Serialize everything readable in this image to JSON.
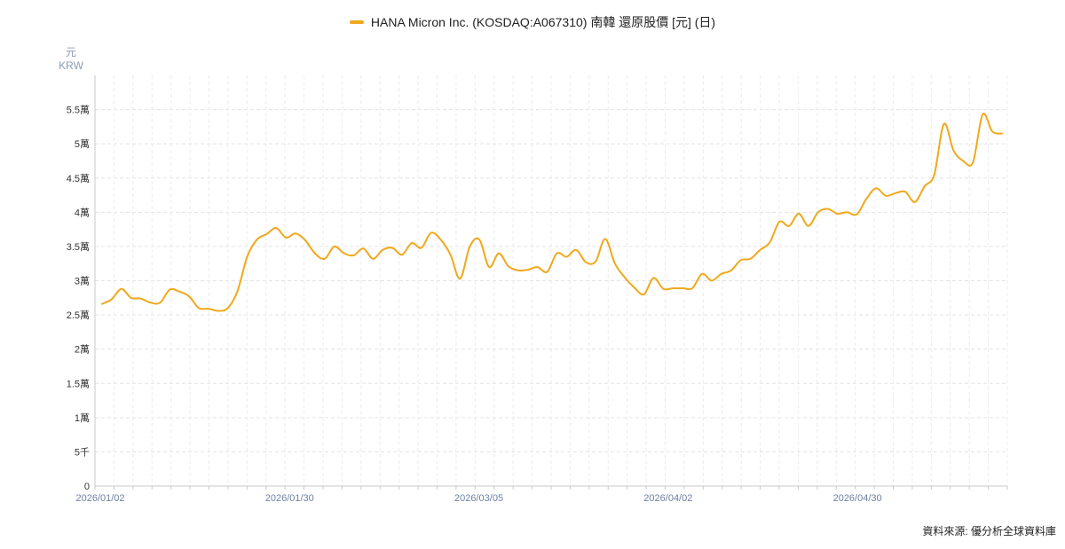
{
  "legend": {
    "label": "HANA Micron Inc. (KOSDAQ:A067310) 南韓 還原股價 [元] (日)",
    "color": "#f0a81c"
  },
  "unit": {
    "line1": "元",
    "line2": "KRW"
  },
  "source": "資料來源: 優分析全球資料庫",
  "chart_data": {
    "type": "line",
    "x_labels": [
      "2026/01/02",
      "2026/01/30",
      "2026/03/05",
      "2026/04/02",
      "2026/04/30"
    ],
    "y_ticks": [
      {
        "value": 0,
        "label": "0"
      },
      {
        "value": 5000,
        "label": "5千"
      },
      {
        "value": 10000,
        "label": "1萬"
      },
      {
        "value": 15000,
        "label": "1.5萬"
      },
      {
        "value": 20000,
        "label": "2萬"
      },
      {
        "value": 25000,
        "label": "2.5萬"
      },
      {
        "value": 30000,
        "label": "3萬"
      },
      {
        "value": 35000,
        "label": "3.5萬"
      },
      {
        "value": 40000,
        "label": "4萬"
      },
      {
        "value": 45000,
        "label": "4.5萬"
      },
      {
        "value": 50000,
        "label": "5萬"
      },
      {
        "value": 55000,
        "label": "5.5萬"
      }
    ],
    "ylim": [
      0,
      60000
    ],
    "grid": true,
    "series": [
      {
        "name": "HANA Micron Inc. (KOSDAQ:A067310) 南韓 還原股價 [元] (日)",
        "color": "#f0a81c",
        "values": [
          26600,
          27300,
          28800,
          27500,
          27400,
          26800,
          26800,
          28700,
          28400,
          27700,
          26000,
          25900,
          25600,
          26000,
          28500,
          33500,
          36000,
          36800,
          37700,
          36300,
          36900,
          35900,
          34000,
          33200,
          35000,
          34000,
          33700,
          34700,
          33200,
          34500,
          34800,
          33800,
          35500,
          34800,
          37000,
          36000,
          33800,
          30300,
          35000,
          36000,
          32000,
          34000,
          32100,
          31500,
          31600,
          32000,
          31300,
          34000,
          33500,
          34500,
          32700,
          32800,
          36100,
          32500,
          30500,
          29000,
          28000,
          30400,
          28800,
          28900,
          28900,
          28900,
          31000,
          30000,
          31000,
          31500,
          33000,
          33200,
          34500,
          35600,
          38600,
          38000,
          39800,
          38000,
          40000,
          40500,
          39800,
          40000,
          39700,
          42000,
          43500,
          42400,
          42800,
          43000,
          41500,
          43800,
          45500,
          52900,
          49000,
          47500,
          47300,
          54300,
          51800,
          51500
        ]
      }
    ]
  }
}
